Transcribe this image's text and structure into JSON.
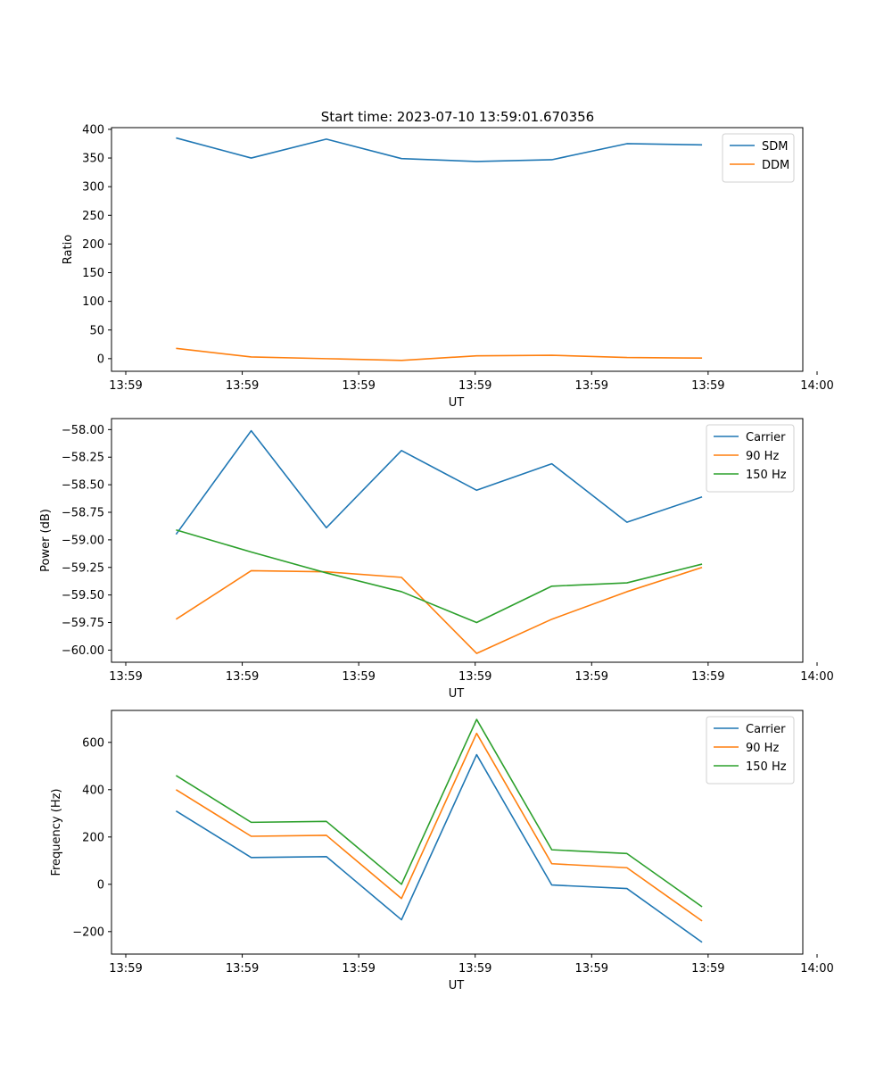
{
  "figure_title": "Start time: 2023-07-10 13:59:01.670356",
  "chart_data": [
    {
      "type": "line",
      "id": "ratio-chart",
      "title": "Start time: 2023-07-10 13:59:01.670356",
      "xlabel": "UT",
      "ylabel": "Ratio",
      "x": [
        1,
        2,
        3,
        4,
        5,
        6,
        7,
        8
      ],
      "xlim": [
        0.2,
        9.4
      ],
      "x_ticks": [
        0.2,
        1.75,
        3.3,
        4.85,
        6.4,
        7.95,
        9.4
      ],
      "x_tick_labels": [
        "13:59",
        "13:59",
        "13:59",
        "13:59",
        "13:59",
        "13:59",
        "14:00"
      ],
      "ylim": [
        -22,
        403
      ],
      "y_ticks": [
        0,
        50,
        100,
        150,
        200,
        250,
        300,
        350,
        400
      ],
      "y_tick_labels": [
        "0",
        "50",
        "100",
        "150",
        "200",
        "250",
        "300",
        "350",
        "400"
      ],
      "legend": "top-right",
      "series": [
        {
          "name": "SDM",
          "color": "#1f77b4",
          "values": [
            385,
            350,
            383,
            349,
            344,
            347,
            375,
            373
          ]
        },
        {
          "name": "DDM",
          "color": "#ff7f0e",
          "values": [
            18,
            3,
            0,
            -3,
            5,
            6,
            2,
            1
          ]
        }
      ]
    },
    {
      "type": "line",
      "id": "power-chart",
      "title": "",
      "xlabel": "UT",
      "ylabel": "Power (dB)",
      "x": [
        1,
        2,
        3,
        4,
        5,
        6,
        7,
        8
      ],
      "xlim": [
        0.2,
        9.4
      ],
      "x_ticks": [
        0.2,
        1.75,
        3.3,
        4.85,
        6.4,
        7.95,
        9.4
      ],
      "x_tick_labels": [
        "13:59",
        "13:59",
        "13:59",
        "13:59",
        "13:59",
        "13:59",
        "14:00"
      ],
      "ylim": [
        -60.11,
        -57.9
      ],
      "y_ticks": [
        -60.0,
        -59.75,
        -59.5,
        -59.25,
        -59.0,
        -58.75,
        -58.5,
        -58.25,
        -58.0
      ],
      "y_tick_labels": [
        "−60.00",
        "−59.75",
        "−59.50",
        "−59.25",
        "−59.00",
        "−58.75",
        "−58.50",
        "−58.25",
        "−58.00"
      ],
      "legend": "top-right",
      "series": [
        {
          "name": "Carrier",
          "color": "#1f77b4",
          "values": [
            -58.95,
            -58.01,
            -58.89,
            -58.19,
            -58.55,
            -58.31,
            -58.84,
            -58.61
          ]
        },
        {
          "name": "90 Hz",
          "color": "#ff7f0e",
          "values": [
            -59.72,
            -59.28,
            -59.29,
            -59.34,
            -60.03,
            -59.72,
            -59.47,
            -59.25
          ]
        },
        {
          "name": "150 Hz",
          "color": "#2ca02c",
          "values": [
            -58.91,
            -59.11,
            -59.3,
            -59.47,
            -59.75,
            -59.42,
            -59.39,
            -59.22
          ]
        }
      ]
    },
    {
      "type": "line",
      "id": "frequency-chart",
      "title": "",
      "xlabel": "UT",
      "ylabel": "Frequency (Hz)",
      "x": [
        1,
        2,
        3,
        4,
        5,
        6,
        7,
        8
      ],
      "xlim": [
        0.2,
        9.4
      ],
      "x_ticks": [
        0.2,
        1.75,
        3.3,
        4.85,
        6.4,
        7.95,
        9.4
      ],
      "x_tick_labels": [
        "13:59",
        "13:59",
        "13:59",
        "13:59",
        "13:59",
        "13:59",
        "14:00"
      ],
      "ylim": [
        -295,
        735
      ],
      "y_ticks": [
        -200,
        0,
        200,
        400,
        600
      ],
      "y_tick_labels": [
        "−200",
        "0",
        "200",
        "400",
        "600"
      ],
      "legend": "top-right",
      "series": [
        {
          "name": "Carrier",
          "color": "#1f77b4",
          "values": [
            310,
            113,
            117,
            -150,
            548,
            -3,
            -18,
            -245
          ]
        },
        {
          "name": "90 Hz",
          "color": "#ff7f0e",
          "values": [
            400,
            203,
            207,
            -60,
            638,
            87,
            70,
            -155
          ]
        },
        {
          "name": "150 Hz",
          "color": "#2ca02c",
          "values": [
            460,
            262,
            266,
            0,
            697,
            146,
            130,
            -95
          ]
        }
      ]
    }
  ]
}
